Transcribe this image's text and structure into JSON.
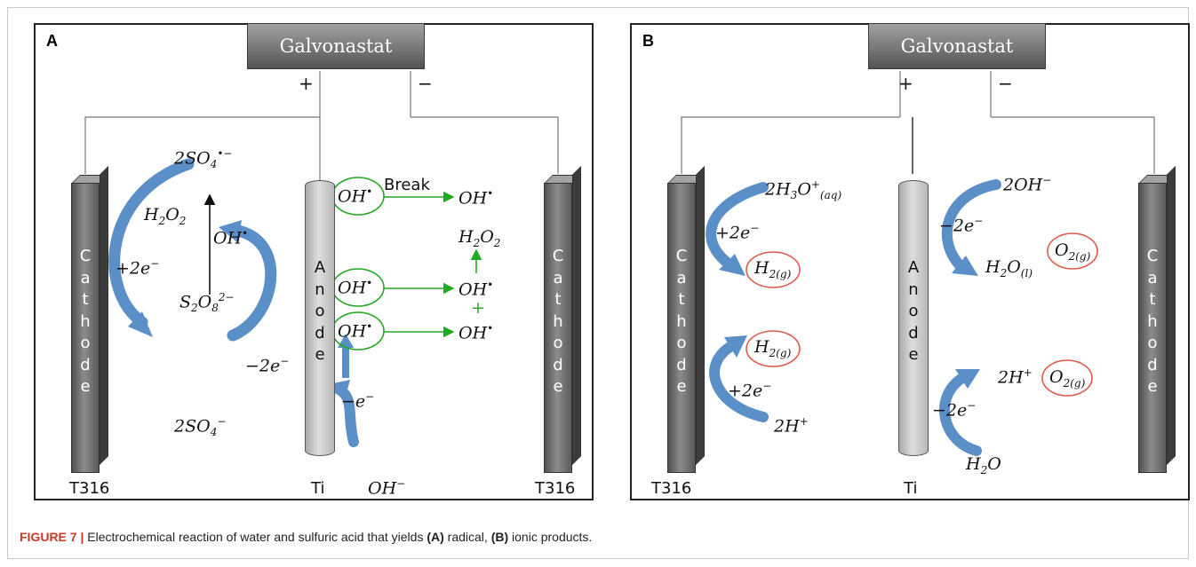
{
  "panels": [
    {
      "letter": "A",
      "galvanostat": "Galvonastat",
      "plus": "+",
      "minus": "−",
      "cathode_text": "Cathode",
      "anode_text": "Anode",
      "left_material": "T316",
      "center_material": "Ti",
      "right_material": "T316",
      "break_label": "Break",
      "species": {
        "so4_radical": [
          "2",
          "SO",
          "4",
          "•−"
        ],
        "h2o2_left": [
          "H",
          "2",
          "O",
          "2"
        ],
        "oh_radical": [
          "OH",
          "•"
        ],
        "s2o8": [
          "S",
          "2",
          "O",
          "8",
          "2−"
        ],
        "so4_minus": [
          "2",
          "SO",
          "4",
          "−"
        ],
        "h2o2_right": [
          "H",
          "2",
          "O",
          "2"
        ],
        "oh_minus": [
          "OH",
          "−"
        ],
        "plus_green": "+"
      },
      "electrons": {
        "plus_2e": [
          "+2",
          "e",
          "−"
        ],
        "minus_2e": [
          "−2",
          "e",
          "−"
        ],
        "minus_e": [
          "−",
          "e",
          "−"
        ]
      }
    },
    {
      "letter": "B",
      "galvanostat": "Galvonastat",
      "plus": "+",
      "minus": "−",
      "cathode_text": "Cathode",
      "anode_text": "Anode",
      "left_material": "T316",
      "center_material": "Ti",
      "species": {
        "h3o": [
          "2",
          "H",
          "3",
          "O",
          "+",
          "(aq)"
        ],
        "h2g": [
          "H",
          "2(g)"
        ],
        "h_plus": [
          "2",
          "H",
          "+"
        ],
        "oh_minus": [
          "2",
          "OH",
          "−"
        ],
        "h2o_l": [
          "H",
          "2",
          "O",
          "(l)"
        ],
        "o2g": [
          "O",
          "2(g)"
        ],
        "h2o": [
          "H",
          "2",
          "O"
        ]
      },
      "electrons": {
        "plus_2e": [
          "+2",
          "e",
          "−"
        ],
        "minus_2e": [
          "−2",
          "e",
          "−"
        ]
      }
    }
  ],
  "caption": {
    "figure_label": "FIGURE 7 |",
    "text_1": " Electrochemical reaction of water and sulfuric acid that yields ",
    "a_ref": "(A)",
    "text_2": " radical, ",
    "b_ref": "(B)",
    "text_3": " ionic products."
  },
  "colors": {
    "arrow_blue": "#5b8fc7",
    "green": "#22aa22",
    "red_circle": "#e0594a",
    "galvanostat": "#6e6e6e"
  }
}
